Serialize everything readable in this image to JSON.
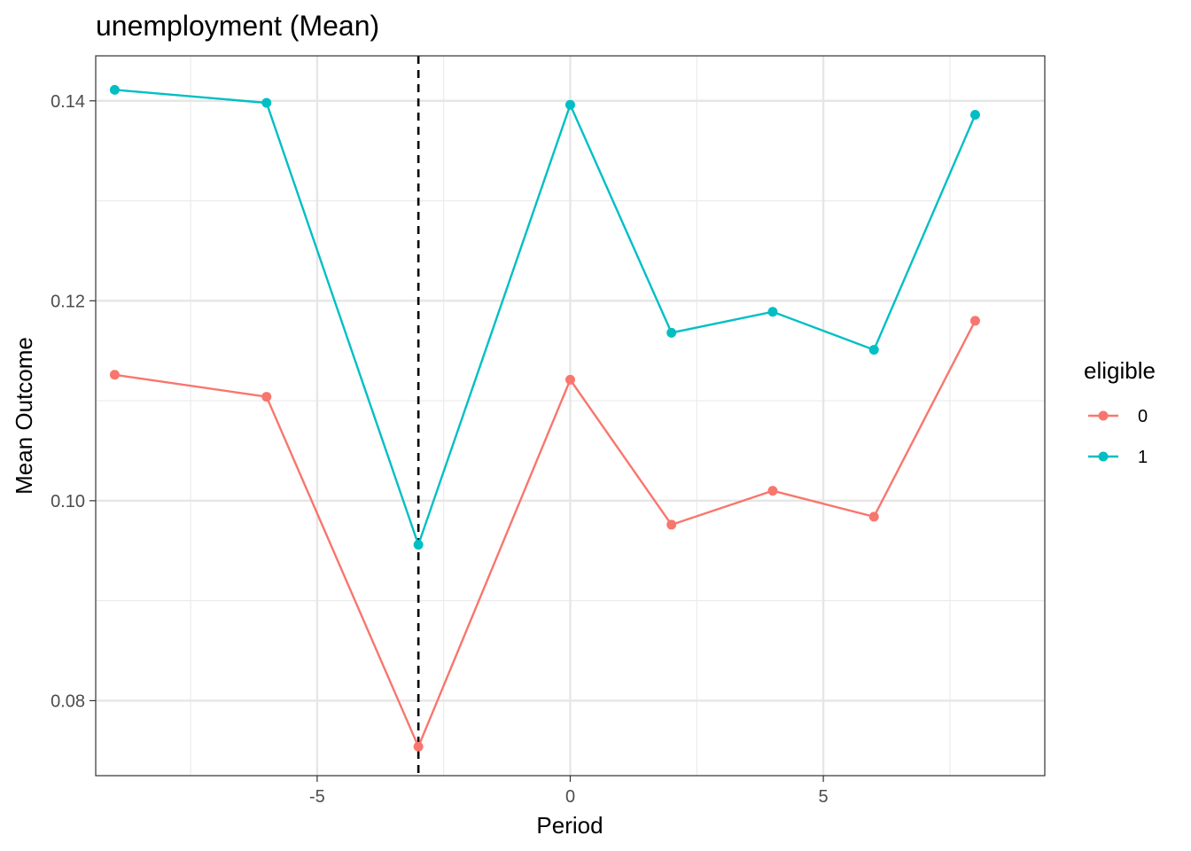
{
  "chart_data": {
    "type": "line",
    "title": "unemployment (Mean)",
    "xlabel": "Period",
    "ylabel": "Mean Outcome",
    "xlim": [
      -9.375,
      9.375
    ],
    "ylim": [
      0.0725,
      0.1445
    ],
    "x_major_ticks": [
      -5,
      0,
      5
    ],
    "x_minor_ticks": [
      -7.5,
      -2.5,
      2.5,
      7.5
    ],
    "y_major_ticks": [
      0.08,
      0.1,
      0.12,
      0.14
    ],
    "y_minor_ticks": [
      0.09,
      0.11,
      0.13
    ],
    "grid": true,
    "reference_line": {
      "x": -3,
      "style": "dashed",
      "color": "#000000"
    },
    "legend": {
      "title": "eligible",
      "placement": "right"
    },
    "x": [
      -9,
      -6,
      -3,
      0,
      2,
      4,
      6,
      8
    ],
    "series": [
      {
        "name": "0",
        "color": "#F8766D",
        "values": [
          0.1126,
          0.1104,
          0.0754,
          0.1121,
          0.0976,
          0.101,
          0.0984,
          0.118
        ]
      },
      {
        "name": "1",
        "color": "#00BFC4",
        "values": [
          0.1411,
          0.1398,
          0.0956,
          0.1396,
          0.1168,
          0.1189,
          0.1151,
          0.1386
        ]
      }
    ]
  }
}
